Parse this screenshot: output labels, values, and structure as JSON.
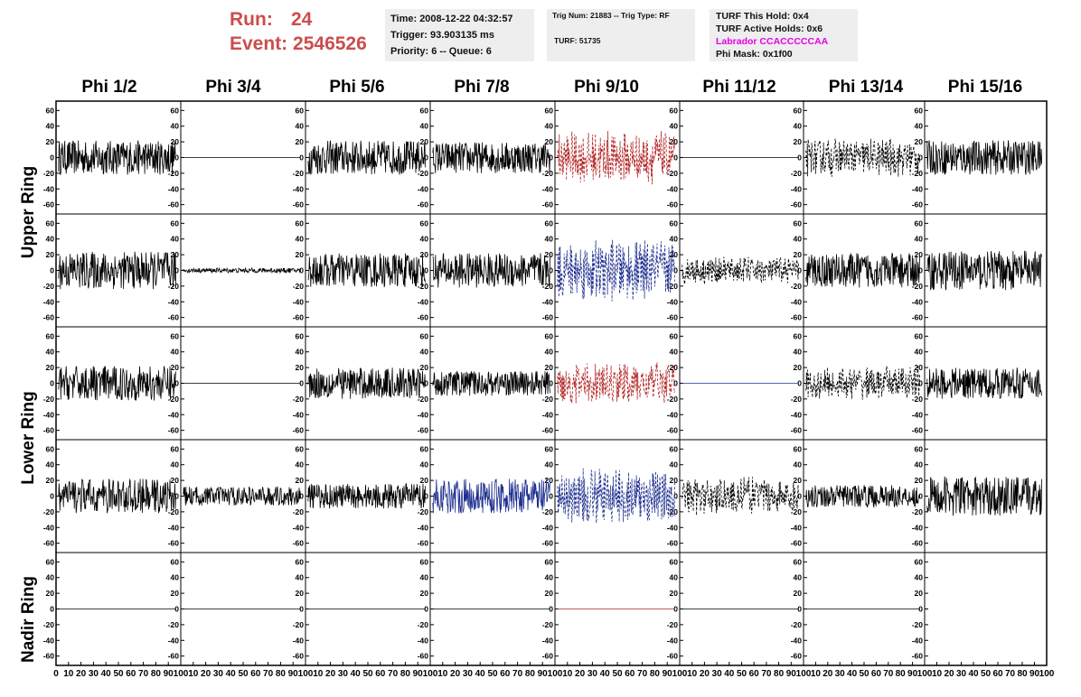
{
  "header": {
    "run_label": "Run:",
    "run_value": "24",
    "event_label": "Event:",
    "event_value": "2546526",
    "time": "Time: 2008-12-22 04:32:57",
    "trigger": "Trigger: 93.903135 ms",
    "priority": "Priority: 6 -- Queue: 6",
    "trig_num": "Trig Num: 21883 -- Trig Type: RF",
    "turf": "TURF: 51735",
    "turf_this_hold": "TURF This Hold: 0x4",
    "turf_active_holds": "TURF Active Holds: 0x6",
    "labrador": "Labrador CCACCCCCAA",
    "phi_mask": "Phi Mask: 0x1f00"
  },
  "colors": {
    "run_text": "#cc4d4d",
    "info_bg": "#eeeeee",
    "labrador": "#e600e6",
    "red": "#b22222",
    "blue": "#1f2f8f",
    "black": "#000000"
  },
  "columns": [
    "Phi 1/2",
    "Phi 3/4",
    "Phi 5/6",
    "Phi 7/8",
    "Phi 9/10",
    "Phi 11/12",
    "Phi 13/14",
    "Phi 15/16"
  ],
  "rows": [
    "Upper Ring",
    "Lower Ring",
    "Nadir Ring"
  ],
  "chart_data": {
    "type": "line",
    "xlim": [
      0,
      100
    ],
    "ylim": [
      -65,
      65
    ],
    "y_ticks": [
      -60,
      -40,
      -20,
      0,
      20,
      40,
      60
    ],
    "x_ticks": [
      0,
      10,
      20,
      30,
      40,
      50,
      60,
      70,
      80,
      90,
      100
    ],
    "grid": false,
    "panels": [
      {
        "row": 0,
        "col": 0,
        "style": "solid",
        "color": "black",
        "amp": 22
      },
      {
        "row": 0,
        "col": 1,
        "style": "solid",
        "color": "black",
        "amp": 0
      },
      {
        "row": 0,
        "col": 2,
        "style": "solid",
        "color": "black",
        "amp": 22
      },
      {
        "row": 0,
        "col": 3,
        "style": "solid",
        "color": "black",
        "amp": 20
      },
      {
        "row": 0,
        "col": 4,
        "style": "dashed",
        "color": "red",
        "amp": 35
      },
      {
        "row": 0,
        "col": 5,
        "style": "solid",
        "color": "black",
        "amp": 0
      },
      {
        "row": 0,
        "col": 6,
        "style": "dashed",
        "color": "black",
        "amp": 25
      },
      {
        "row": 0,
        "col": 7,
        "style": "solid",
        "color": "black",
        "amp": 22
      },
      {
        "row": 1,
        "col": 0,
        "style": "solid",
        "color": "black",
        "amp": 24
      },
      {
        "row": 1,
        "col": 1,
        "style": "solid",
        "color": "black",
        "amp": 3
      },
      {
        "row": 1,
        "col": 2,
        "style": "solid",
        "color": "black",
        "amp": 22
      },
      {
        "row": 1,
        "col": 3,
        "style": "solid",
        "color": "black",
        "amp": 22
      },
      {
        "row": 1,
        "col": 4,
        "style": "dashed",
        "color": "blue",
        "amp": 40
      },
      {
        "row": 1,
        "col": 5,
        "style": "dashed",
        "color": "black",
        "amp": 18
      },
      {
        "row": 1,
        "col": 6,
        "style": "solid",
        "color": "black",
        "amp": 22
      },
      {
        "row": 1,
        "col": 7,
        "style": "solid",
        "color": "black",
        "amp": 25
      },
      {
        "row": 2,
        "col": 0,
        "style": "solid",
        "color": "black",
        "amp": 22
      },
      {
        "row": 2,
        "col": 1,
        "style": "solid",
        "color": "black",
        "amp": 0
      },
      {
        "row": 2,
        "col": 2,
        "style": "solid",
        "color": "black",
        "amp": 20
      },
      {
        "row": 2,
        "col": 3,
        "style": "solid",
        "color": "black",
        "amp": 16
      },
      {
        "row": 2,
        "col": 4,
        "style": "dashed",
        "color": "red",
        "amp": 28
      },
      {
        "row": 2,
        "col": 5,
        "style": "solid",
        "color": "blue",
        "amp": 0
      },
      {
        "row": 2,
        "col": 6,
        "style": "dashed",
        "color": "black",
        "amp": 22
      },
      {
        "row": 2,
        "col": 7,
        "style": "solid",
        "color": "black",
        "amp": 20
      },
      {
        "row": 3,
        "col": 0,
        "style": "solid",
        "color": "black",
        "amp": 22
      },
      {
        "row": 3,
        "col": 1,
        "style": "solid",
        "color": "black",
        "amp": 12
      },
      {
        "row": 3,
        "col": 2,
        "style": "solid",
        "color": "black",
        "amp": 16
      },
      {
        "row": 3,
        "col": 3,
        "style": "solid",
        "color": "blue",
        "amp": 22
      },
      {
        "row": 3,
        "col": 4,
        "style": "dashed",
        "color": "blue",
        "amp": 38
      },
      {
        "row": 3,
        "col": 5,
        "style": "dashed",
        "color": "black",
        "amp": 25
      },
      {
        "row": 3,
        "col": 6,
        "style": "solid",
        "color": "black",
        "amp": 14
      },
      {
        "row": 3,
        "col": 7,
        "style": "solid",
        "color": "black",
        "amp": 25
      },
      {
        "row": 4,
        "col": 0,
        "style": "solid",
        "color": "black",
        "amp": 0
      },
      {
        "row": 4,
        "col": 1,
        "style": "solid",
        "color": "black",
        "amp": 0
      },
      {
        "row": 4,
        "col": 2,
        "style": "solid",
        "color": "black",
        "amp": 0
      },
      {
        "row": 4,
        "col": 3,
        "style": "solid",
        "color": "black",
        "amp": 0
      },
      {
        "row": 4,
        "col": 4,
        "style": "solid",
        "color": "red",
        "amp": 0
      },
      {
        "row": 4,
        "col": 5,
        "style": "solid",
        "color": "black",
        "amp": 0
      },
      {
        "row": 4,
        "col": 6,
        "style": "solid",
        "color": "black",
        "amp": 0
      }
    ]
  }
}
